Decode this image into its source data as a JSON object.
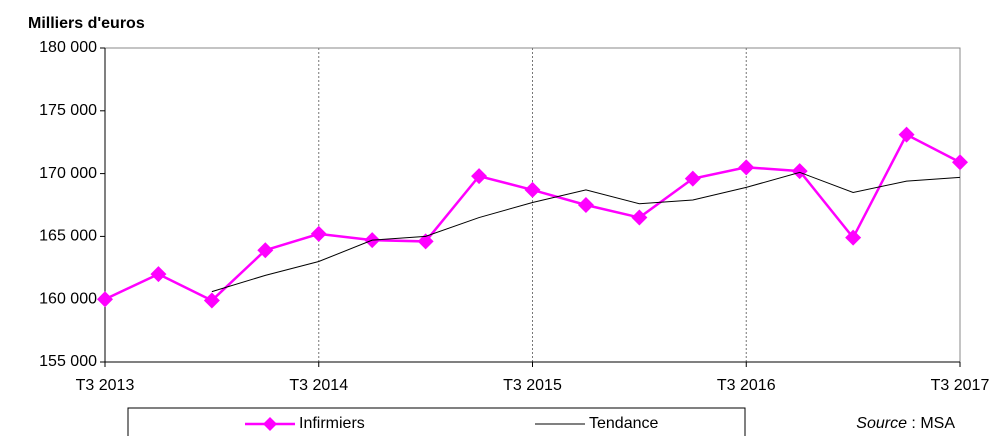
{
  "chart_data": {
    "type": "line",
    "y_label": "Milliers d'euros",
    "categories": [
      "T3 2013",
      null,
      null,
      null,
      "T3 2014",
      null,
      null,
      null,
      "T3 2015",
      null,
      null,
      null,
      "T3 2016",
      null,
      null,
      null,
      "T3 2017"
    ],
    "series": [
      {
        "name": "Infirmiers",
        "color": "#ff00ff",
        "marker": "diamond",
        "values": [
          160000,
          162000,
          159900,
          163900,
          165200,
          164700,
          164600,
          169800,
          168700,
          167500,
          166500,
          169600,
          170500,
          170200,
          164900,
          173100,
          170900
        ]
      },
      {
        "name": "Tendance",
        "color": "#000000",
        "values": [
          null,
          null,
          160600,
          161900,
          163000,
          164700,
          165000,
          166500,
          167700,
          168700,
          167600,
          167900,
          168900,
          170100,
          168500,
          169400,
          169700
        ]
      }
    ],
    "ylim": [
      155000,
      180000
    ],
    "yticks": [
      {
        "value": 155000,
        "label": "155 000"
      },
      {
        "value": 160000,
        "label": "160 000"
      },
      {
        "value": 165000,
        "label": "165 000"
      },
      {
        "value": 170000,
        "label": "170 000"
      },
      {
        "value": 175000,
        "label": "175 000"
      },
      {
        "value": 180000,
        "label": "180 000"
      }
    ],
    "grid": "x",
    "legend": "bottom",
    "source": {
      "label": "Source",
      "text": " : MSA"
    }
  }
}
